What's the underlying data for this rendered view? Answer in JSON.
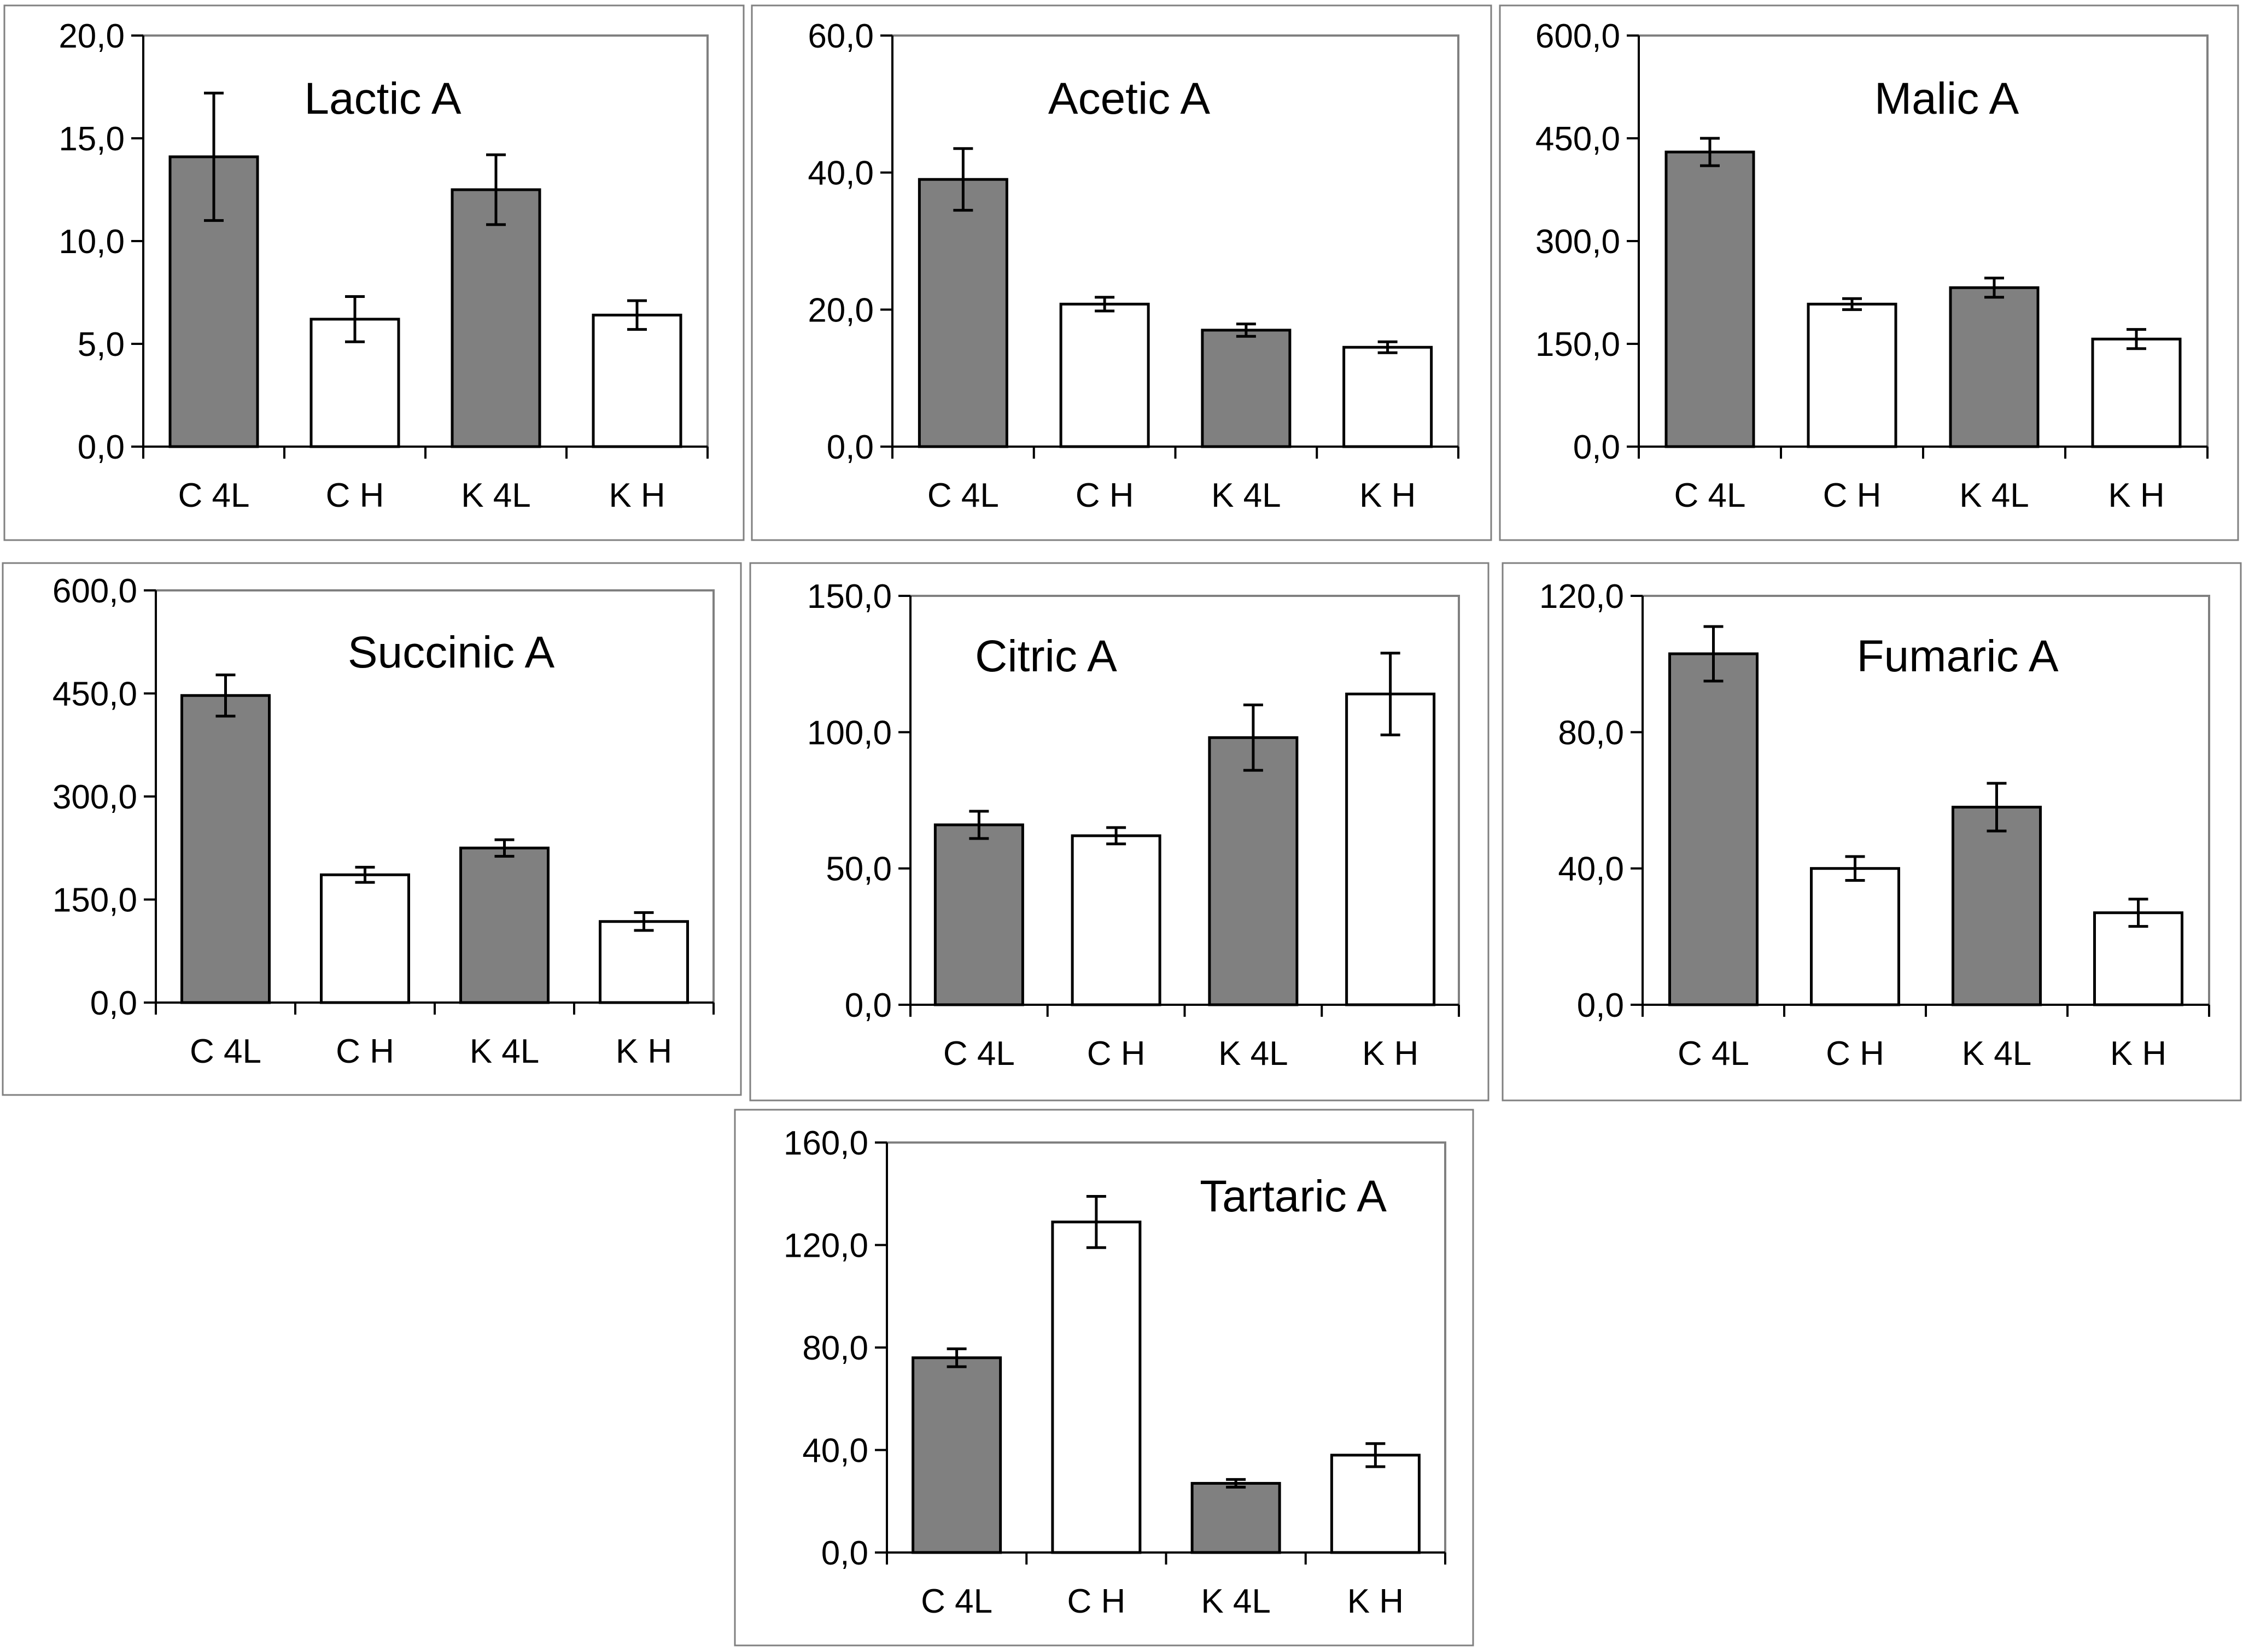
{
  "chart_data": [
    {
      "type": "bar",
      "title": "Lactic A",
      "categories": [
        "C 4L",
        "C H",
        "K 4L",
        "K H"
      ],
      "values": [
        14.1,
        6.2,
        12.5,
        6.4
      ],
      "errors": [
        3.1,
        1.1,
        1.7,
        0.7
      ],
      "bar_colors": [
        "#808080",
        "#ffffff",
        "#808080",
        "#ffffff"
      ],
      "ylim": [
        0,
        20
      ],
      "yticks": [
        0,
        5,
        10,
        15,
        20
      ],
      "ytick_labels": [
        "0,0",
        "5,0",
        "10,0",
        "15,0",
        "20,0"
      ],
      "xlabel": "",
      "ylabel": "",
      "grid": false,
      "legend": "none"
    },
    {
      "type": "bar",
      "title": "Acetic A",
      "categories": [
        "C 4L",
        "C H",
        "K 4L",
        "K H"
      ],
      "values": [
        39.0,
        20.8,
        17.0,
        14.5
      ],
      "errors": [
        4.5,
        1.0,
        0.9,
        0.8
      ],
      "bar_colors": [
        "#808080",
        "#ffffff",
        "#808080",
        "#ffffff"
      ],
      "ylim": [
        0,
        60
      ],
      "yticks": [
        0,
        20,
        40,
        60
      ],
      "ytick_labels": [
        "0,0",
        "20,0",
        "40,0",
        "60,0"
      ],
      "xlabel": "",
      "ylabel": "",
      "grid": false,
      "legend": "none"
    },
    {
      "type": "bar",
      "title": "Malic A",
      "categories": [
        "C 4L",
        "C H",
        "K 4L",
        "K H"
      ],
      "values": [
        430.0,
        208.0,
        232.0,
        157.0
      ],
      "errors": [
        20.0,
        8.0,
        14.0,
        14.0
      ],
      "bar_colors": [
        "#808080",
        "#ffffff",
        "#808080",
        "#ffffff"
      ],
      "ylim": [
        0,
        600
      ],
      "yticks": [
        0,
        150,
        300,
        450,
        600
      ],
      "ytick_labels": [
        "0,0",
        "150,0",
        "300,0",
        "450,0",
        "600,0"
      ],
      "xlabel": "",
      "ylabel": "",
      "grid": false,
      "legend": "none"
    },
    {
      "type": "bar",
      "title": "Succinic A",
      "categories": [
        "C 4L",
        "C H",
        "K 4L",
        "K H"
      ],
      "values": [
        447.0,
        186.0,
        225.0,
        118.0
      ],
      "errors": [
        30.0,
        11.0,
        12.0,
        13.0
      ],
      "bar_colors": [
        "#808080",
        "#ffffff",
        "#808080",
        "#ffffff"
      ],
      "ylim": [
        0,
        600
      ],
      "yticks": [
        0,
        150,
        300,
        450,
        600
      ],
      "ytick_labels": [
        "0,0",
        "150,0",
        "300,0",
        "450,0",
        "600,0"
      ],
      "xlabel": "",
      "ylabel": "",
      "grid": false,
      "legend": "none"
    },
    {
      "type": "bar",
      "title": "Citric A",
      "categories": [
        "C 4L",
        "C H",
        "K 4L",
        "K H"
      ],
      "values": [
        66.0,
        62.0,
        98.0,
        114.0
      ],
      "errors": [
        5.0,
        3.0,
        12.0,
        15.0
      ],
      "bar_colors": [
        "#808080",
        "#ffffff",
        "#808080",
        "#ffffff"
      ],
      "ylim": [
        0,
        150
      ],
      "yticks": [
        0,
        50,
        100,
        150
      ],
      "ytick_labels": [
        "0,0",
        "50,0",
        "100,0",
        "150,0"
      ],
      "xlabel": "",
      "ylabel": "",
      "grid": false,
      "legend": "none"
    },
    {
      "type": "bar",
      "title": "Fumaric A",
      "categories": [
        "C 4L",
        "C H",
        "K 4L",
        "K H"
      ],
      "values": [
        103.0,
        40.0,
        58.0,
        27.0
      ],
      "errors": [
        8.0,
        3.5,
        7.0,
        4.0
      ],
      "bar_colors": [
        "#808080",
        "#ffffff",
        "#808080",
        "#ffffff"
      ],
      "ylim": [
        0,
        120
      ],
      "yticks": [
        0,
        40,
        80,
        120
      ],
      "ytick_labels": [
        "0,0",
        "40,0",
        "80,0",
        "120,0"
      ],
      "xlabel": "",
      "ylabel": "",
      "grid": false,
      "legend": "none"
    },
    {
      "type": "bar",
      "title": "Tartaric A",
      "categories": [
        "C 4L",
        "C H",
        "K 4L",
        "K H"
      ],
      "values": [
        76.0,
        129.0,
        27.0,
        38.0
      ],
      "errors": [
        3.5,
        10.0,
        1.5,
        4.5
      ],
      "bar_colors": [
        "#808080",
        "#ffffff",
        "#808080",
        "#ffffff"
      ],
      "ylim": [
        0,
        160
      ],
      "yticks": [
        0,
        40,
        80,
        120,
        160
      ],
      "ytick_labels": [
        "0,0",
        "40,0",
        "80,0",
        "120,0",
        "160,0"
      ],
      "xlabel": "",
      "ylabel": "",
      "grid": false,
      "legend": "none"
    }
  ]
}
